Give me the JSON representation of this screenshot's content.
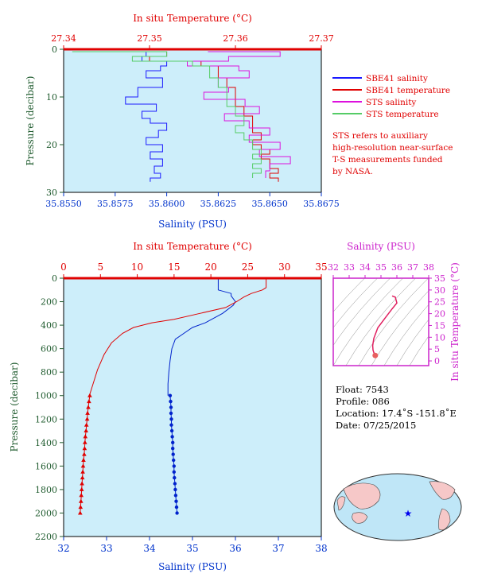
{
  "chart_data": [
    {
      "id": "top",
      "type": "line",
      "top_axis_label": "In situ Temperature (°C)",
      "top_ticks": [
        "27.34",
        "27.35",
        "27.36",
        "27.37"
      ],
      "temp_range": [
        27.34,
        27.37
      ],
      "ylabel": "Pressure (decibar)",
      "y_ticks": [
        "0",
        "10",
        "20",
        "30"
      ],
      "ylim": [
        30,
        0
      ],
      "xlabel": "Salinity (PSU)",
      "x_ticks": [
        "35.8550",
        "35.8575",
        "35.8600",
        "35.8625",
        "35.8650",
        "35.8675"
      ],
      "sal_range": [
        35.855,
        35.8675
      ],
      "legend": [
        {
          "label": "SBE41 salinity",
          "color": "#1a1aff"
        },
        {
          "label": "SBE41 temperature",
          "color": "#e00000"
        },
        {
          "label": "STS salinity",
          "color": "#dd11dd"
        },
        {
          "label": "STS temperature",
          "color": "#55cc66"
        }
      ],
      "note": [
        "STS refers to auxiliary",
        "high-resolution near-surface",
        "T-S measurements funded",
        "by NASA."
      ],
      "series": [
        {
          "name": "SBE41 salinity",
          "axis": "salinity",
          "color": "#1a1aff",
          "x": [
            35.8563,
            35.859,
            35.8588,
            35.86,
            35.8597,
            35.859,
            35.8598,
            35.8586,
            35.858,
            35.8595,
            35.8588,
            35.8592,
            35.86,
            35.8596,
            35.859,
            35.8598,
            35.8592,
            35.8598,
            35.8594,
            35.8597,
            35.8592
          ],
          "y": [
            0.5,
            1.5,
            2.5,
            3.5,
            4.5,
            6,
            8,
            10,
            11.5,
            13,
            14.5,
            15.5,
            17,
            18.5,
            20,
            21.5,
            23,
            24.5,
            26,
            27,
            27.8
          ]
        },
        {
          "name": "SBE41 temperature",
          "axis": "temperature",
          "color": "#e00000",
          "x": [
            27.343,
            27.352,
            27.35,
            27.356,
            27.358,
            27.358,
            27.359,
            27.36,
            27.36,
            27.361,
            27.362,
            27.362,
            27.363,
            27.362,
            27.363,
            27.364,
            27.363,
            27.364,
            27.364,
            27.365,
            27.364,
            27.365
          ],
          "y": [
            0.5,
            1.5,
            2.5,
            3.5,
            4.5,
            6,
            8,
            10,
            12,
            14,
            16,
            17.5,
            19,
            20,
            21,
            22,
            23,
            24,
            25,
            26,
            27,
            27.8
          ]
        },
        {
          "name": "STS salinity",
          "axis": "salinity",
          "color": "#dd11dd",
          "x": [
            35.862,
            35.8655,
            35.863,
            35.861,
            35.8635,
            35.864,
            35.8625,
            35.863,
            35.8618,
            35.8638,
            35.8645,
            35.8628,
            35.864,
            35.865,
            35.864,
            35.8655,
            35.8645,
            35.866,
            35.865,
            35.8648
          ],
          "y": [
            0.5,
            1.5,
            2.5,
            3.5,
            4.5,
            6,
            8,
            9,
            10.5,
            12,
            13.5,
            15,
            16.5,
            18,
            19.5,
            21,
            22.5,
            24,
            25.5,
            27
          ]
        },
        {
          "name": "STS temperature",
          "axis": "temperature",
          "color": "#55cc66",
          "x": [
            27.341,
            27.352,
            27.348,
            27.355,
            27.357,
            27.357,
            27.358,
            27.359,
            27.359,
            27.36,
            27.361,
            27.36,
            27.361,
            27.362,
            27.362,
            27.363,
            27.362,
            27.363,
            27.362,
            27.363,
            27.362
          ],
          "y": [
            0.5,
            1.5,
            2.5,
            3.5,
            4.5,
            6,
            8,
            10,
            12,
            14,
            16,
            17.5,
            19,
            20,
            21,
            22,
            23,
            24,
            25,
            26,
            27
          ]
        }
      ]
    },
    {
      "id": "bottom",
      "type": "line",
      "top_axis_label": "In situ Temperature (°C)",
      "top_ticks": [
        "0",
        "5",
        "10",
        "15",
        "20",
        "25",
        "30",
        "35"
      ],
      "temp_range": [
        0,
        35
      ],
      "ylabel": "Pressure (decibar)",
      "y_ticks": [
        "0",
        "200",
        "400",
        "600",
        "800",
        "1000",
        "1200",
        "1400",
        "1600",
        "1800",
        "2000",
        "2200"
      ],
      "ylim": [
        2200,
        0
      ],
      "xlabel": "Salinity (PSU)",
      "x_ticks": [
        "32",
        "33",
        "34",
        "35",
        "36",
        "37",
        "38"
      ],
      "sal_range": [
        32,
        38
      ],
      "series": [
        {
          "name": "Salinity",
          "axis": "salinity",
          "color": "#0022cc",
          "x": [
            35.6,
            35.6,
            35.9,
            35.9,
            36.0,
            35.95,
            35.7,
            35.3,
            35.0,
            34.8,
            34.6,
            34.52,
            34.48,
            34.45,
            34.43,
            34.43
          ],
          "y": [
            0,
            100,
            130,
            150,
            200,
            230,
            300,
            380,
            420,
            470,
            520,
            600,
            700,
            800,
            900,
            1000
          ]
        },
        {
          "name": "Temperature",
          "axis": "temperature",
          "color": "#e00000",
          "x": [
            27.5,
            27.5,
            27.0,
            25.5,
            24.5,
            23.5,
            22.0,
            18.5,
            15.0,
            12.0,
            9.5,
            8.0,
            6.5,
            5.5,
            4.6,
            4.0,
            3.5
          ],
          "y": [
            0,
            80,
            100,
            130,
            160,
            200,
            250,
            300,
            350,
            380,
            420,
            470,
            550,
            650,
            780,
            900,
            1000
          ]
        }
      ],
      "marked_points": {
        "pressure": [
          1000,
          1050,
          1100,
          1150,
          1200,
          1250,
          1300,
          1350,
          1400,
          1450,
          1500,
          1550,
          1600,
          1650,
          1700,
          1750,
          1800,
          1850,
          1900,
          1950,
          2000
        ],
        "salinity": [
          34.48,
          34.49,
          34.5,
          34.5,
          34.51,
          34.51,
          34.52,
          34.53,
          34.54,
          34.54,
          34.55,
          34.56,
          34.57,
          34.57,
          34.58,
          34.59,
          34.6,
          34.61,
          34.62,
          34.63,
          34.64
        ],
        "temperature": [
          3.55,
          3.45,
          3.35,
          3.25,
          3.2,
          3.1,
          3.05,
          2.95,
          2.9,
          2.85,
          2.8,
          2.7,
          2.65,
          2.6,
          2.55,
          2.5,
          2.45,
          2.4,
          2.35,
          2.3,
          2.25
        ]
      }
    },
    {
      "id": "ts_inset",
      "type": "scatter",
      "top_axis_label": "Salinity (PSU)",
      "top_ticks": [
        "32",
        "33",
        "34",
        "35",
        "36",
        "37",
        "38"
      ],
      "sal_range": [
        32,
        38
      ],
      "right_axis_label": "In situ Temperature (°C)",
      "right_ticks": [
        "0",
        "5",
        "10",
        "15",
        "20",
        "25",
        "30",
        "35"
      ],
      "temp_range": [
        -2,
        35
      ],
      "series": [
        {
          "name": "T-S",
          "color": "#e02060",
          "salinity": [
            35.7,
            35.9,
            36.0,
            35.7,
            35.3,
            34.8,
            34.55,
            34.48,
            34.5,
            34.55,
            34.6,
            34.64
          ],
          "temperature": [
            27.5,
            27.0,
            24.5,
            22.0,
            18.5,
            14.0,
            9.5,
            6.5,
            4.6,
            3.5,
            3.0,
            2.3
          ]
        }
      ]
    }
  ],
  "info": {
    "float": "Float:  7543",
    "profile": "Profile:  086",
    "location": "Location:  17.4˚S  -151.8˚E",
    "date": "Date:  07/25/2015"
  },
  "map": {
    "ocean_color": "#bfe6f7",
    "land_color": "#f6c8c8",
    "marker_color": "#0000ee"
  },
  "colors": {
    "panel_bg": "#cdeefa",
    "red": "#e00000",
    "blue": "#0033cc",
    "green": "#1f5b2e",
    "magenta": "#cc22cc"
  }
}
